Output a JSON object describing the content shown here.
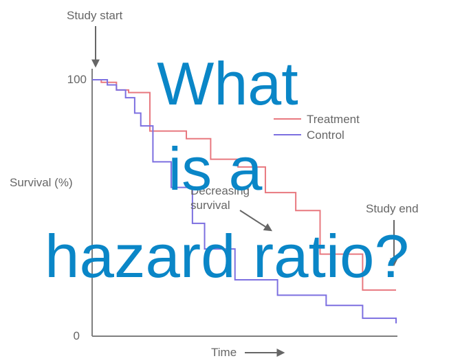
{
  "chart_data": {
    "type": "line",
    "step": true,
    "xlabel": "Time",
    "ylabel": "Survival (%)",
    "yticks": [
      {
        "value": 0,
        "label": "0"
      },
      {
        "value": 100,
        "label": "100"
      }
    ],
    "ylim": [
      0,
      100
    ],
    "xlim": [
      0,
      100
    ],
    "legend": {
      "placement": "upper-right"
    },
    "series": [
      {
        "name": "Treatment",
        "color": "#e8787f",
        "x": [
          0,
          3,
          8,
          12,
          19,
          31,
          39,
          48,
          57,
          67,
          75,
          89,
          100
        ],
        "y": [
          100,
          99,
          96,
          95,
          80,
          77,
          69,
          66,
          56,
          49,
          32,
          18,
          18
        ]
      },
      {
        "name": "Control",
        "color": "#7c6fe0",
        "x": [
          0,
          5,
          8,
          11,
          14,
          16,
          20,
          26,
          33,
          37,
          47,
          61,
          77,
          89,
          100
        ],
        "y": [
          100,
          98,
          96,
          93,
          87,
          82,
          68,
          58,
          44,
          34,
          22,
          16,
          12,
          7,
          5
        ]
      }
    ],
    "annotations": {
      "study_start": "Study start",
      "study_end": "Study end",
      "decreasing": [
        "Decreasing",
        "survival"
      ]
    },
    "overlay_text": [
      "What",
      "is a",
      "hazard ratio?"
    ],
    "colors": {
      "axis": "#7f7f7f",
      "text": "#666666",
      "overlay": "#0a86c7"
    }
  }
}
